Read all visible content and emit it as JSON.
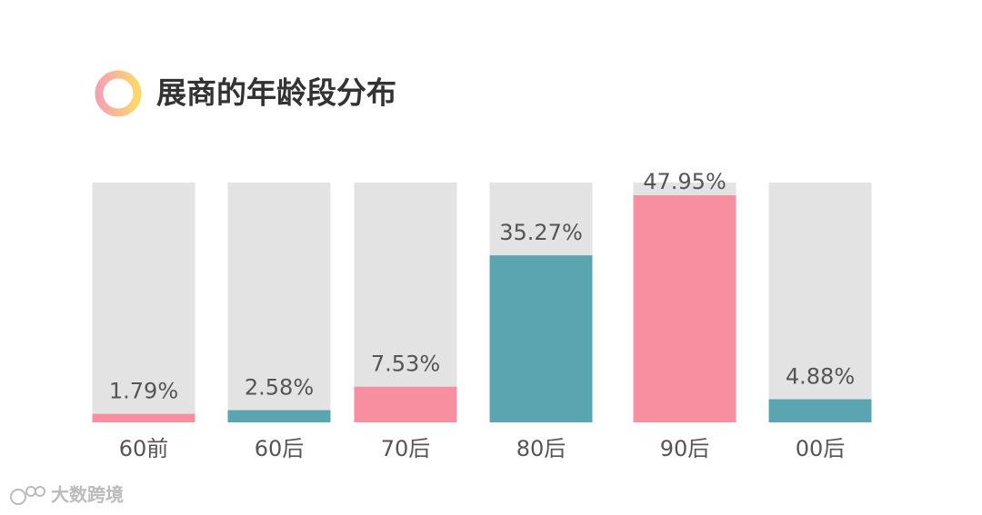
{
  "chart_data": {
    "type": "bar",
    "title": "展商的年龄段分布",
    "categories": [
      "60前",
      "60后",
      "70后",
      "80后",
      "90后",
      "00后"
    ],
    "values": [
      1.79,
      2.58,
      7.53,
      35.27,
      47.95,
      4.88
    ],
    "value_labels": [
      "1.79%",
      "2.58%",
      "7.53%",
      "35.27%",
      "47.95%",
      "4.88%"
    ],
    "colors": [
      "#f78fa0",
      "#5ba5b0",
      "#f78fa0",
      "#5ba5b0",
      "#f78fa0",
      "#5ba5b0"
    ],
    "background_color": "#e3e3e3",
    "watermark": "大数跨境"
  }
}
